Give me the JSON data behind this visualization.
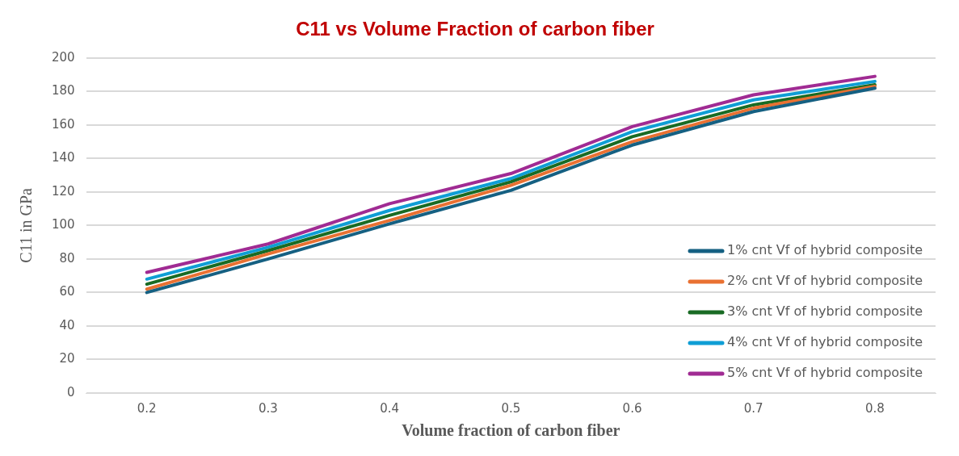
{
  "chart_data": {
    "type": "line",
    "title": "C11 vs Volume Fraction of carbon fiber",
    "xlabel": "Volume fraction of carbon fiber",
    "ylabel": "C11 in GPa",
    "categories": [
      "0.2",
      "0.3",
      "0.4",
      "0.5",
      "0.6",
      "0.7",
      "0.8"
    ],
    "series": [
      {
        "name": "1% cnt Vf of hybrid composite",
        "color": "#156082",
        "values": [
          60,
          80,
          101,
          121,
          148,
          168,
          182
        ]
      },
      {
        "name": "2% cnt Vf of hybrid composite",
        "color": "#e97132",
        "values": [
          62,
          83,
          103,
          124,
          150,
          170,
          183
        ]
      },
      {
        "name": "3% cnt Vf of hybrid composite",
        "color": "#196b24",
        "values": [
          65,
          85,
          106,
          126,
          153,
          172,
          184
        ]
      },
      {
        "name": "4% cnt Vf of hybrid composite",
        "color": "#0f9ed5",
        "values": [
          68,
          87,
          109,
          128,
          156,
          175,
          186
        ]
      },
      {
        "name": "5% cnt Vf of hybrid composite",
        "color": "#a02b93",
        "values": [
          72,
          89,
          113,
          131,
          159,
          178,
          189
        ]
      }
    ],
    "ylim": [
      0,
      200
    ],
    "yticks": [
      0,
      20,
      40,
      60,
      80,
      100,
      120,
      140,
      160,
      180,
      200
    ],
    "grid": "y",
    "legend": "bottom right",
    "marker": "none",
    "line_style": "solid"
  }
}
